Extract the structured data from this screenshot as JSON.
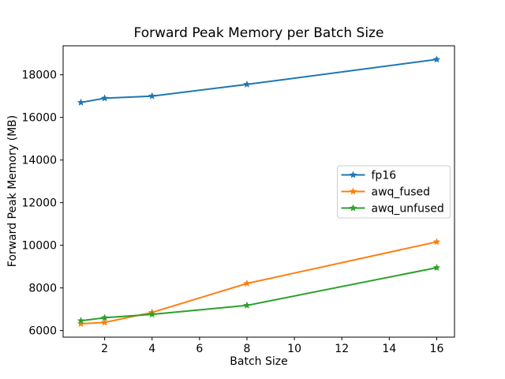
{
  "chart_data": {
    "type": "line",
    "title": "Forward Peak Memory per Batch Size",
    "xlabel": "Batch Size",
    "ylabel": "Forward Peak Memory (MB)",
    "x": [
      1,
      2,
      4,
      8,
      16
    ],
    "series": [
      {
        "name": "fp16",
        "color": "#1f77b4",
        "marker": "star",
        "values": [
          16700,
          16900,
          17000,
          17550,
          18720
        ]
      },
      {
        "name": "awq_fused",
        "color": "#ff7f0e",
        "marker": "star",
        "values": [
          6320,
          6380,
          6850,
          8210,
          10160
        ]
      },
      {
        "name": "awq_unfused",
        "color": "#2ca02c",
        "marker": "star",
        "values": [
          6460,
          6600,
          6760,
          7180,
          8950
        ]
      }
    ],
    "xticks": [
      2,
      4,
      6,
      8,
      10,
      12,
      14,
      16
    ],
    "yticks": [
      6000,
      8000,
      10000,
      12000,
      14000,
      16000,
      18000
    ],
    "xlim": [
      0.25,
      16.75
    ],
    "ylim": [
      5690,
      19360
    ],
    "grid": false,
    "legend": {
      "position": "center-right",
      "entries": [
        "fp16",
        "awq_fused",
        "awq_unfused"
      ]
    },
    "colors": {
      "axes": "#000000",
      "legend_border": "#cccccc",
      "background": "#ffffff"
    }
  }
}
